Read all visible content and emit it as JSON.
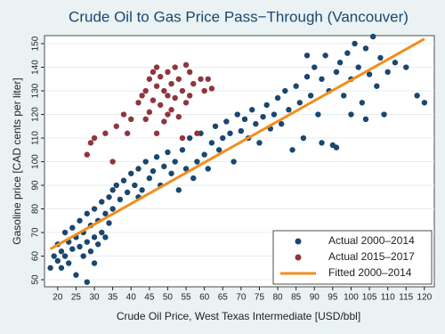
{
  "chart_data": {
    "type": "scatter",
    "title": "Crude Oil to Gas Price Pass−Through (Vancouver)",
    "x_label": "Crude Oil Price, West Texas Intermediate [USD/bbl]",
    "y_label": "Gasoline price [CAD cents per liter]",
    "xlim": [
      16.4,
      122.7
    ],
    "ylim": [
      47,
      153.4
    ],
    "xticks": [
      20,
      25,
      30,
      35,
      40,
      45,
      50,
      55,
      60,
      65,
      70,
      75,
      80,
      85,
      90,
      95,
      100,
      105,
      110,
      115,
      120
    ],
    "yticks": [
      50,
      60,
      70,
      80,
      90,
      100,
      110,
      120,
      130,
      140,
      150
    ],
    "grid": true,
    "legend": "bottom-right",
    "series": [
      {
        "name": "Actual 2000–2014",
        "color": "#1a476f",
        "kind": "scatter",
        "x": [
          18,
          19,
          20,
          20,
          21,
          21,
          22,
          22,
          23,
          23,
          24,
          24,
          25,
          25,
          26,
          26,
          27,
          27,
          28,
          28,
          28,
          29,
          29,
          30,
          30,
          30,
          31,
          31,
          32,
          32,
          33,
          33,
          34,
          34,
          35,
          35,
          36,
          37,
          38,
          39,
          40,
          41,
          42,
          42,
          43,
          44,
          45,
          46,
          47,
          48,
          49,
          50,
          51,
          52,
          53,
          54,
          55,
          56,
          57,
          58,
          59,
          60,
          61,
          62,
          63,
          64,
          65,
          66,
          67,
          68,
          69,
          70,
          71,
          72,
          73,
          74,
          75,
          76,
          77,
          78,
          79,
          80,
          81,
          82,
          83,
          84,
          85,
          86,
          87,
          88,
          89,
          90,
          91,
          92,
          93,
          94,
          95,
          96,
          97,
          98,
          99,
          100,
          101,
          102,
          103,
          104,
          105,
          106,
          107,
          108,
          109,
          110,
          112,
          115,
          118,
          120,
          92,
          96,
          88,
          100,
          104
        ],
        "values": [
          55,
          60,
          58,
          65,
          62,
          55,
          70,
          60,
          66,
          57,
          72,
          63,
          68,
          52,
          75,
          64,
          70,
          60,
          78,
          66,
          49,
          73,
          62,
          80,
          68,
          57,
          75,
          65,
          83,
          70,
          78,
          68,
          85,
          74,
          88,
          80,
          90,
          84,
          92,
          87,
          95,
          90,
          97,
          85,
          88,
          100,
          93,
          96,
          102,
          90,
          98,
          104,
          95,
          100,
          88,
          105,
          97,
          110,
          93,
          100,
          112,
          103,
          97,
          108,
          115,
          105,
          110,
          117,
          112,
          100,
          120,
          113,
          118,
          110,
          122,
          116,
          108,
          119,
          124,
          114,
          120,
          127,
          116,
          130,
          122,
          105,
          132,
          125,
          110,
          136,
          128,
          140,
          120,
          135,
          145,
          130,
          107,
          138,
          142,
          128,
          146,
          135,
          150,
          140,
          125,
          148,
          137,
          153,
          132,
          144,
          120,
          138,
          142,
          140,
          128,
          125,
          108,
          106,
          145,
          120,
          118
        ]
      },
      {
        "name": "Actual 2015–2017",
        "color": "#90353b",
        "kind": "scatter",
        "x": [
          28,
          29,
          30,
          33,
          36,
          38,
          40,
          42,
          43,
          44,
          45,
          45,
          46,
          46,
          47,
          47,
          48,
          48,
          49,
          49,
          50,
          50,
          51,
          51,
          52,
          52,
          53,
          53,
          54,
          55,
          55,
          56,
          57,
          58,
          59,
          60,
          61,
          62,
          35,
          39,
          44,
          47,
          50,
          54,
          56
        ],
        "values": [
          103,
          108,
          110,
          112,
          115,
          120,
          118,
          125,
          128,
          130,
          121,
          135,
          138,
          126,
          132,
          140,
          124,
          136,
          130,
          117,
          138,
          128,
          133,
          122,
          140,
          127,
          135,
          119,
          130,
          141,
          125,
          138,
          133,
          112,
          135,
          130,
          135,
          131,
          100,
          112,
          118,
          112,
          120,
          110,
          128
        ]
      },
      {
        "name": "Fitted 2000–2014",
        "color": "#f28e1c",
        "kind": "line",
        "x": [
          18,
          120
        ],
        "values": [
          63,
          152
        ]
      }
    ]
  }
}
